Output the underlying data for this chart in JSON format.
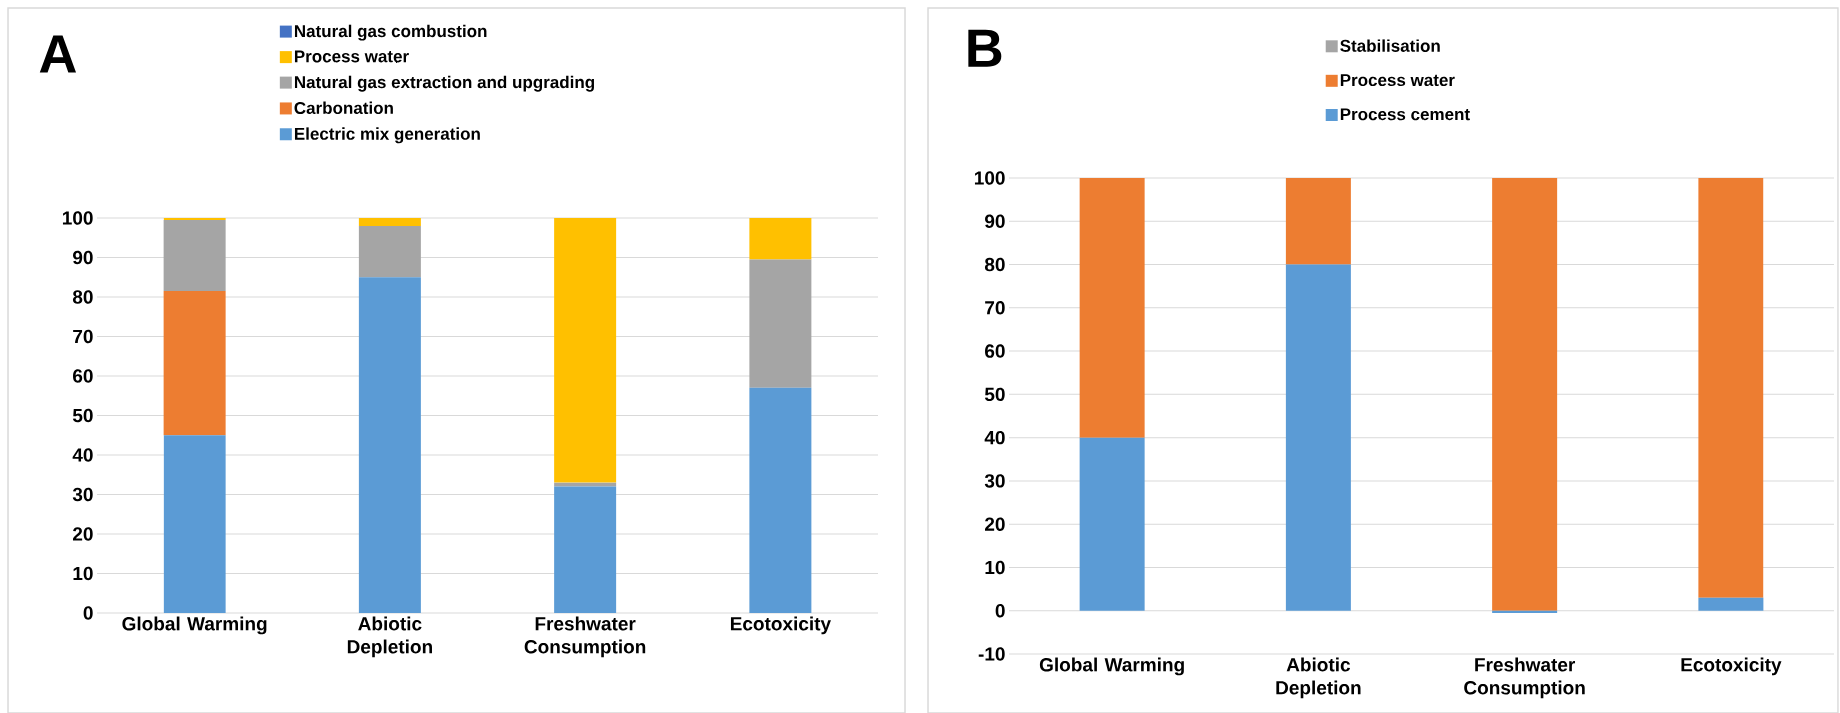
{
  "chart_data": [
    {
      "type": "bar",
      "title": "A",
      "stacked": true,
      "categories": [
        "Global Warming",
        "Abiotic Depletion",
        "Freshwater Consumption",
        "Ecotoxicity"
      ],
      "ylim": [
        0,
        100
      ],
      "yticks": [
        0,
        10,
        20,
        30,
        40,
        50,
        60,
        70,
        80,
        90,
        100
      ],
      "grid": "y",
      "legend": "top",
      "series": [
        {
          "name": "Electric mix generation",
          "color": "#5b9bd5",
          "values": [
            45,
            85,
            32,
            57
          ]
        },
        {
          "name": "Carbonation",
          "color": "#ed7d31",
          "values": [
            36.5,
            0,
            0,
            0
          ]
        },
        {
          "name": "Natural gas extraction and upgrading",
          "color": "#a5a5a5",
          "values": [
            18,
            13,
            1,
            32.5
          ]
        },
        {
          "name": "Process water",
          "color": "#ffc000",
          "values": [
            0.5,
            2,
            67,
            10.5
          ]
        },
        {
          "name": "Natural gas combustion",
          "color": "#4472c4",
          "values": [
            0,
            0,
            0,
            0
          ]
        }
      ]
    },
    {
      "type": "bar",
      "title": "B",
      "stacked": true,
      "categories": [
        "Global Warming",
        "Abiotic Depletion",
        "Freshwater Consumption",
        "Ecotoxicity"
      ],
      "ylim": [
        -10,
        100
      ],
      "yticks": [
        -10,
        0,
        10,
        20,
        30,
        40,
        50,
        60,
        70,
        80,
        90,
        100
      ],
      "grid": "y",
      "legend": "top",
      "series": [
        {
          "name": "Process cement",
          "color": "#5b9bd5",
          "values": [
            40,
            80,
            -0.5,
            3
          ]
        },
        {
          "name": "Process water",
          "color": "#ed7d31",
          "values": [
            60,
            20,
            100,
            97
          ]
        },
        {
          "name": "Stabilisation",
          "color": "#a5a5a5",
          "values": [
            0,
            0,
            0,
            0
          ]
        }
      ]
    }
  ]
}
